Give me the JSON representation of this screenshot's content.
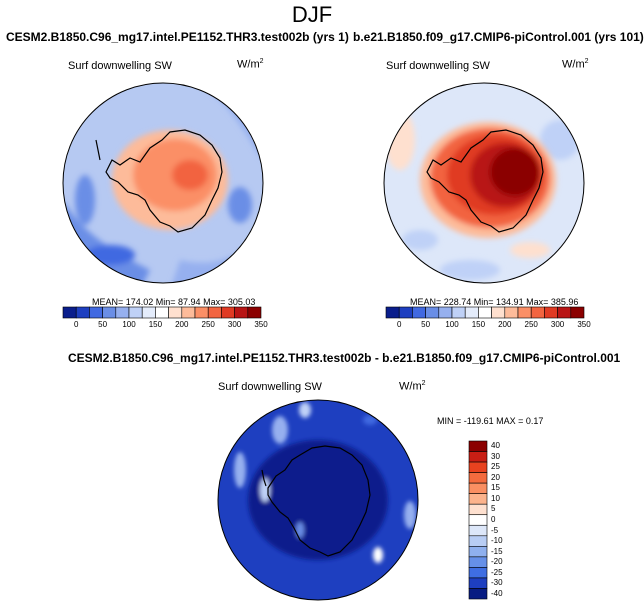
{
  "season": "DJF",
  "panels": [
    {
      "title": "CESM2.B1850.C96_mg17.intel.PE1152.THR3.test002b (yrs 1)",
      "variable": "Surf downwelling SW",
      "units_base": "W/m",
      "units_exp": "2",
      "stats": "MEAN= 174.02  Min=  87.94  Max= 305.03",
      "colorbar": [
        "0",
        "50",
        "100",
        "150",
        "200",
        "250",
        "300",
        "350"
      ]
    },
    {
      "title": "b.e21.B1850.f09_g17.CMIP6-piControl.001 (yrs 101)",
      "variable": "Surf downwelling SW",
      "units_base": "W/m",
      "units_exp": "2",
      "stats": "MEAN= 228.74  Min= 134.91  Max= 385.96",
      "colorbar": [
        "0",
        "50",
        "100",
        "150",
        "200",
        "250",
        "300",
        "350"
      ]
    }
  ],
  "diff": {
    "title": "CESM2.B1850.C96_mg17.intel.PE1152.THR3.test002b - b.e21.B1850.f09_g17.CMIP6-piControl.001",
    "variable": "Surf downwelling SW",
    "units_base": "W/m",
    "units_exp": "2",
    "stats": "MIN = -119.61 MAX =  0.17",
    "colorbar": [
      "40",
      "30",
      "25",
      "20",
      "15",
      "10",
      "5",
      "0",
      "-5",
      "-10",
      "-15",
      "-20",
      "-25",
      "-30",
      "-40"
    ]
  },
  "colors": {
    "seq": [
      "#0a1e8c",
      "#1e3fc0",
      "#4169e1",
      "#6a8ee6",
      "#96b0ef",
      "#bfd1f7",
      "#e4ecfb",
      "#ffffff",
      "#ffe0cf",
      "#fdbb9a",
      "#fb8f66",
      "#f26440",
      "#e03a23",
      "#b81414",
      "#8b0000"
    ],
    "diff": [
      "#8b0000",
      "#c81e14",
      "#e8421f",
      "#f46b3e",
      "#fa8f62",
      "#fcb38c",
      "#fee0cf",
      "#ffffff",
      "#dde7f9",
      "#b8cdf4",
      "#8fb0ee",
      "#6690e8",
      "#3f6ee2",
      "#1e3fc0",
      "#081c82"
    ]
  }
}
